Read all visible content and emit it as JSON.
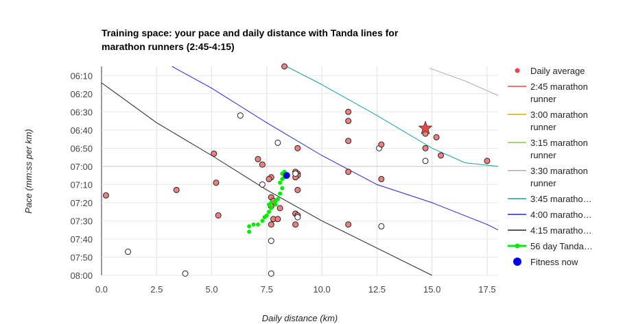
{
  "chart_data": {
    "type": "scatter",
    "title": "Training space: your pace and daily distance with Tanda lines for marathon runners (2:45-4:15)",
    "xlabel": "Daily distance (km)",
    "ylabel": "Pace (mm:ss per km)",
    "xlim": [
      0,
      18
    ],
    "ylim_seconds": [
      365,
      480
    ],
    "x_ticks": [
      "0.0",
      "2.5",
      "5.0",
      "7.5",
      "10.0",
      "12.5",
      "15.0",
      "17.5"
    ],
    "x_tick_values": [
      0,
      2.5,
      5,
      7.5,
      10,
      12.5,
      15,
      17.5
    ],
    "y_ticks": [
      "06:10",
      "06:20",
      "06:30",
      "06:40",
      "06:50",
      "07:00",
      "07:10",
      "07:20",
      "07:30",
      "07:40",
      "07:50",
      "08:00"
    ],
    "y_tick_values": [
      370,
      380,
      390,
      400,
      410,
      420,
      430,
      440,
      450,
      460,
      470,
      480
    ],
    "grid": true,
    "legend_position": "right",
    "legend": [
      {
        "label": "Daily average",
        "kind": "dot",
        "color": "#ef4444"
      },
      {
        "label": "2:45 marathon runner",
        "line1": "2:45 marathon",
        "line2": "runner",
        "kind": "line",
        "color": "#ef4444"
      },
      {
        "label": "3:00 marathon runner",
        "line1": "3:00 marathon",
        "line2": "runner",
        "kind": "line",
        "color": "#f59e0b"
      },
      {
        "label": "3:15 marathon runner",
        "line1": "3:15 marathon",
        "line2": "runner",
        "kind": "line",
        "color": "#8bc34a"
      },
      {
        "label": "3:30 marathon runner",
        "line1": "3:30 marathon",
        "line2": "runner",
        "kind": "line",
        "color": "#aaaaaa"
      },
      {
        "label": "3:45 maratho…",
        "kind": "line",
        "color": "#17a2a2"
      },
      {
        "label": "4:00 maratho…",
        "kind": "line",
        "color": "#2222dd"
      },
      {
        "label": "4:15 maratho…",
        "kind": "line",
        "color": "#222222"
      },
      {
        "label": "56 day Tanda…",
        "kind": "dotline",
        "color": "#00ee00"
      },
      {
        "label": "Fitness now",
        "kind": "bigdot",
        "color": "#0000ee"
      }
    ],
    "series": [
      {
        "name": "3:30 marathon runner",
        "color": "#aaaaaa",
        "points": [
          [
            14.9,
            366
          ],
          [
            16.5,
            373
          ],
          [
            18,
            381
          ]
        ]
      },
      {
        "name": "3:45 marathon runner",
        "color": "#17a2a2",
        "points": [
          [
            8.4,
            365
          ],
          [
            10,
            375
          ],
          [
            12.5,
            392
          ],
          [
            15,
            410
          ],
          [
            16.5,
            418
          ],
          [
            18,
            420
          ]
        ]
      },
      {
        "name": "4:00 marathon runner",
        "color": "#2222dd",
        "points": [
          [
            3.2,
            365
          ],
          [
            5,
            377
          ],
          [
            7.5,
            396
          ],
          [
            10,
            414
          ],
          [
            12.5,
            430
          ],
          [
            15,
            440
          ],
          [
            17.5,
            452
          ],
          [
            18,
            455
          ]
        ]
      },
      {
        "name": "4:15 marathon runner",
        "color": "#222222",
        "points": [
          [
            0,
            374
          ],
          [
            2.5,
            396
          ],
          [
            5,
            414
          ],
          [
            7.5,
            433
          ],
          [
            10,
            450
          ],
          [
            12.5,
            465
          ],
          [
            15,
            480
          ]
        ]
      },
      {
        "name": "56 day Tanda…",
        "color": "#00ee00",
        "points": [
          [
            6.7,
            456
          ],
          [
            6.7,
            453
          ],
          [
            6.9,
            452
          ],
          [
            7.1,
            452
          ],
          [
            7.3,
            450
          ],
          [
            7.4,
            448
          ],
          [
            7.5,
            447
          ],
          [
            7.6,
            445
          ],
          [
            7.7,
            443
          ],
          [
            7.9,
            441
          ],
          [
            8.0,
            438
          ],
          [
            8.1,
            435
          ],
          [
            8.2,
            432
          ],
          [
            8.1,
            429
          ],
          [
            8.2,
            427
          ],
          [
            8.3,
            426
          ],
          [
            8.2,
            424
          ],
          [
            8.3,
            423
          ],
          [
            7.9,
            439
          ],
          [
            7.7,
            440
          ],
          [
            7.6,
            441
          ]
        ]
      }
    ],
    "daily_points": [
      [
        0.2,
        436,
        "red"
      ],
      [
        1.2,
        467,
        "white"
      ],
      [
        3.8,
        479,
        "white"
      ],
      [
        3.4,
        433,
        "red"
      ],
      [
        5.1,
        413,
        "red"
      ],
      [
        5.2,
        429,
        "red"
      ],
      [
        5.3,
        447,
        "red"
      ],
      [
        7.1,
        416,
        "red"
      ],
      [
        7.3,
        419,
        "red"
      ],
      [
        7.3,
        430,
        "white"
      ],
      [
        6.3,
        392,
        "white"
      ],
      [
        8.3,
        365,
        "red"
      ],
      [
        7.7,
        426,
        "red"
      ],
      [
        7.6,
        427,
        "red"
      ],
      [
        7.7,
        437,
        "red"
      ],
      [
        7.8,
        439,
        "red"
      ],
      [
        7.7,
        442,
        "red"
      ],
      [
        7.8,
        449,
        "red"
      ],
      [
        7.7,
        452,
        "red"
      ],
      [
        7.7,
        461,
        "white"
      ],
      [
        7.7,
        479,
        "white"
      ],
      [
        8.1,
        443,
        "red"
      ],
      [
        8.0,
        449,
        "red"
      ],
      [
        8.8,
        423,
        "red"
      ],
      [
        8.9,
        424,
        "red"
      ],
      [
        8.9,
        425,
        "red"
      ],
      [
        8.8,
        426,
        "red"
      ],
      [
        8.8,
        424,
        "white"
      ],
      [
        8.9,
        433,
        "red"
      ],
      [
        8.8,
        446,
        "red"
      ],
      [
        8.9,
        447,
        "red"
      ],
      [
        8.9,
        448,
        "white"
      ],
      [
        8.8,
        452,
        "red"
      ],
      [
        8.9,
        410,
        "red"
      ],
      [
        8.0,
        407,
        "white"
      ],
      [
        11.2,
        390,
        "red"
      ],
      [
        11.2,
        395,
        "red"
      ],
      [
        11.2,
        406,
        "red"
      ],
      [
        11.2,
        423,
        "red"
      ],
      [
        11.2,
        452,
        "red"
      ],
      [
        12.6,
        410,
        "white"
      ],
      [
        12.7,
        408,
        "red"
      ],
      [
        12.7,
        427,
        "red"
      ],
      [
        12.7,
        453,
        "white"
      ],
      [
        14.7,
        402,
        "red"
      ],
      [
        14.7,
        410,
        "red"
      ],
      [
        14.7,
        417,
        "white"
      ],
      [
        15.2,
        404,
        "red"
      ],
      [
        15.4,
        414,
        "red"
      ],
      [
        17.5,
        417,
        "red"
      ]
    ],
    "highlight_star": [
      14.7,
      399
    ],
    "fitness_now": [
      8.4,
      425
    ]
  }
}
